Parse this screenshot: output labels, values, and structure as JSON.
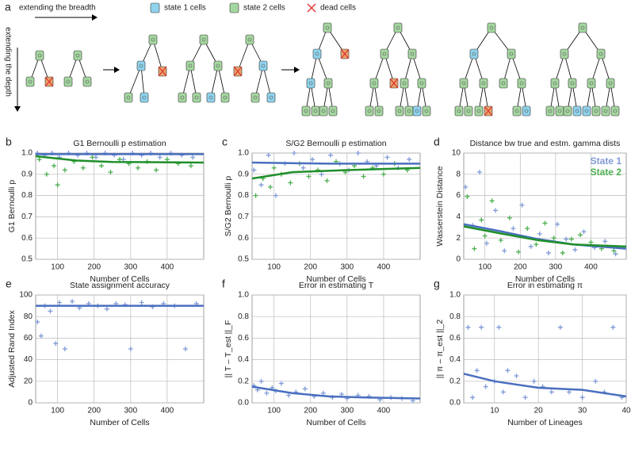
{
  "diagram": {
    "panel": "a",
    "breadth": "extending the breadth",
    "depth": "extending the depth",
    "legend": [
      "state 1 cells",
      "state 2 cells",
      "dead cells"
    ]
  },
  "chart_data": [
    {
      "type": "scatter",
      "panel": "b",
      "title": "G1 Bernoulli p estimation",
      "xlabel": "Number of Cells",
      "ylabel": "G1 Bernoulli p",
      "xlim": [
        40,
        500
      ],
      "ylim": [
        0.5,
        1.0
      ],
      "xticks": [
        100,
        200,
        300,
        400
      ],
      "yticks": [
        0.5,
        0.6,
        0.7,
        0.8,
        0.9,
        {
          "value": 1.0,
          "label": "1.0"
        }
      ],
      "grid": true,
      "series": [
        {
          "color": "#7f9ad6",
          "x": [
            45,
            65,
            85,
            105,
            130,
            155,
            180,
            205,
            230,
            255,
            280,
            305,
            330,
            355,
            380,
            410,
            440,
            470
          ],
          "values": [
            1.0,
            0.99,
            1.0,
            0.98,
            1.0,
            0.99,
            1.0,
            0.98,
            1.0,
            0.99,
            0.97,
            1.0,
            0.99,
            1.0,
            0.98,
            1.0,
            0.99,
            0.98
          ]
        },
        {
          "color": "#4caf50",
          "x": [
            50,
            70,
            90,
            100,
            120,
            145,
            170,
            195,
            220,
            245,
            270,
            295,
            320,
            345,
            370,
            400,
            430,
            465
          ],
          "values": [
            0.97,
            0.9,
            0.94,
            0.85,
            0.92,
            0.96,
            0.93,
            0.98,
            0.94,
            0.91,
            0.97,
            0.95,
            0.93,
            0.96,
            0.92,
            0.97,
            0.95,
            0.94
          ]
        }
      ],
      "trend_lines": [
        {
          "color": "#4a6fbf",
          "x": [
            40,
            500
          ],
          "values": [
            0.995,
            0.995
          ]
        },
        {
          "color": "#1f8f2a",
          "x": [
            40,
            150,
            250,
            350,
            500
          ],
          "values": [
            0.985,
            0.965,
            0.958,
            0.957,
            0.955
          ]
        }
      ]
    },
    {
      "type": "scatter",
      "panel": "c",
      "title": "S/G2 Bernoulli p estimation",
      "xlabel": "Number of Cells",
      "ylabel": "S/G2 Bernoulli p",
      "xlim": [
        40,
        500
      ],
      "ylim": [
        0.5,
        1.0
      ],
      "xticks": [
        100,
        200,
        300,
        400
      ],
      "yticks": [
        0.5,
        0.6,
        0.7,
        0.8,
        0.9,
        {
          "value": 1.0,
          "label": "1.0"
        }
      ],
      "grid": true,
      "series": [
        {
          "color": "#7f9ad6",
          "x": [
            45,
            65,
            85,
            105,
            130,
            155,
            180,
            205,
            230,
            255,
            280,
            305,
            330,
            355,
            380,
            410,
            440,
            470
          ],
          "values": [
            0.92,
            0.85,
            0.99,
            0.8,
            0.95,
            1.0,
            0.93,
            0.97,
            0.9,
            0.99,
            0.95,
            0.92,
            1.0,
            0.96,
            0.94,
            0.98,
            0.93,
            0.97
          ]
        },
        {
          "color": "#4caf50",
          "x": [
            50,
            70,
            90,
            100,
            120,
            145,
            170,
            195,
            220,
            245,
            270,
            295,
            320,
            345,
            370,
            400,
            430,
            465
          ],
          "values": [
            0.8,
            0.88,
            0.84,
            0.93,
            0.9,
            0.86,
            0.95,
            0.89,
            0.92,
            0.87,
            0.96,
            0.91,
            0.94,
            0.89,
            0.93,
            0.9,
            0.95,
            0.92
          ]
        }
      ],
      "trend_lines": [
        {
          "color": "#4a6fbf",
          "x": [
            40,
            250,
            500
          ],
          "values": [
            0.955,
            0.95,
            0.95
          ]
        },
        {
          "color": "#1f8f2a",
          "x": [
            40,
            150,
            300,
            500
          ],
          "values": [
            0.88,
            0.91,
            0.92,
            0.93
          ]
        }
      ]
    },
    {
      "type": "scatter",
      "panel": "d",
      "title": "Distance bw true and estm. gamma dists",
      "xlabel": "Number of Cells",
      "ylabel": "Wasserstein Distance",
      "xlim": [
        40,
        500
      ],
      "ylim": [
        0,
        10
      ],
      "xticks": [
        100,
        200,
        300,
        400
      ],
      "yticks": [
        0,
        2,
        4,
        6,
        8,
        10
      ],
      "grid": true,
      "legend": "upper right",
      "series": [
        {
          "name": "State 1",
          "color": "#7f9ad6",
          "x": [
            45,
            65,
            85,
            105,
            130,
            155,
            180,
            205,
            230,
            255,
            280,
            305,
            330,
            355,
            380,
            410,
            440,
            470
          ],
          "values": [
            6.8,
            3.2,
            8.2,
            1.5,
            4.6,
            0.8,
            2.9,
            5.1,
            1.2,
            2.4,
            0.6,
            3.3,
            1.9,
            0.9,
            2.6,
            1.1,
            1.7,
            0.5
          ]
        },
        {
          "name": "State 2",
          "color": "#4caf50",
          "x": [
            50,
            70,
            90,
            100,
            120,
            145,
            170,
            195,
            220,
            245,
            270,
            295,
            320,
            345,
            370,
            400,
            430,
            465
          ],
          "values": [
            5.9,
            1.0,
            3.7,
            2.2,
            5.5,
            1.8,
            3.9,
            0.7,
            2.9,
            1.4,
            3.4,
            2.0,
            0.6,
            1.9,
            2.3,
            1.6,
            1.0,
            0.8
          ]
        }
      ],
      "trend_lines": [
        {
          "color": "#4a6fbf",
          "x": [
            40,
            150,
            250,
            350,
            500
          ],
          "values": [
            3.3,
            2.6,
            1.9,
            1.4,
            1.0
          ]
        },
        {
          "color": "#1f8f2a",
          "x": [
            40,
            150,
            250,
            350,
            500
          ],
          "values": [
            3.1,
            2.4,
            1.8,
            1.4,
            1.2
          ]
        }
      ]
    },
    {
      "type": "scatter",
      "panel": "e",
      "title": "State assignment accuracy",
      "xlabel": "Number of Cells",
      "ylabel": "Adjusted Rand Index",
      "xlim": [
        40,
        500
      ],
      "ylim": [
        0,
        100
      ],
      "xticks": [
        100,
        200,
        300,
        400
      ],
      "yticks": [
        0,
        20,
        40,
        60,
        80,
        100
      ],
      "grid": true,
      "series": [
        {
          "color": "#7f9ad6",
          "x": [
            45,
            55,
            65,
            80,
            95,
            105,
            120,
            140,
            160,
            185,
            210,
            235,
            260,
            285,
            300,
            330,
            360,
            390,
            420,
            450,
            480
          ],
          "values": [
            75,
            62,
            90,
            85,
            55,
            93,
            50,
            94,
            88,
            92,
            90,
            87,
            92,
            91,
            50,
            93,
            89,
            92,
            90,
            50,
            92
          ]
        }
      ],
      "trend_lines": [
        {
          "color": "#4a6fbf",
          "x": [
            40,
            500
          ],
          "values": [
            90,
            90
          ]
        }
      ]
    },
    {
      "type": "scatter",
      "panel": "f",
      "title": "Error in estimating T",
      "xlabel": "Number of Cells",
      "ylabel": "|| T – T_est ||_F",
      "xlim": [
        40,
        500
      ],
      "ylim": [
        0,
        1
      ],
      "xticks": [
        100,
        200,
        300,
        400
      ],
      "yticks": [
        {
          "value": 0,
          "label": "0.0"
        },
        0.2,
        0.4,
        0.6,
        0.8,
        {
          "value": 1,
          "label": "1.0"
        }
      ],
      "grid": true,
      "series": [
        {
          "color": "#7f9ad6",
          "x": [
            45,
            55,
            65,
            80,
            95,
            105,
            120,
            140,
            160,
            185,
            210,
            235,
            260,
            285,
            300,
            330,
            360,
            390,
            420,
            450,
            480
          ],
          "values": [
            0.16,
            0.12,
            0.2,
            0.09,
            0.14,
            0.11,
            0.18,
            0.07,
            0.1,
            0.13,
            0.06,
            0.09,
            0.05,
            0.08,
            0.04,
            0.07,
            0.06,
            0.03,
            0.05,
            0.04,
            0.02
          ]
        }
      ],
      "trend_lines": [
        {
          "color": "#4a6fbf",
          "x": [
            40,
            150,
            250,
            350,
            500
          ],
          "values": [
            0.15,
            0.09,
            0.06,
            0.05,
            0.04
          ]
        }
      ]
    },
    {
      "type": "scatter",
      "panel": "g",
      "title": "Error in estimating π",
      "xlabel": "Number of Lineages",
      "ylabel": "|| π – π_est ||_2",
      "xlim": [
        3,
        40
      ],
      "ylim": [
        0,
        1
      ],
      "xticks": [
        10,
        20,
        30,
        40
      ],
      "yticks": [
        {
          "value": 0,
          "label": "0.0"
        },
        0.2,
        0.4,
        0.6,
        0.8,
        {
          "value": 1,
          "label": "1.0"
        }
      ],
      "grid": true,
      "series": [
        {
          "color": "#7f9ad6",
          "x": [
            4,
            5,
            6,
            7,
            8,
            10,
            11,
            12,
            13,
            15,
            17,
            19,
            21,
            23,
            25,
            27,
            30,
            33,
            35,
            37,
            39
          ],
          "values": [
            0.7,
            0.05,
            0.3,
            0.7,
            0.15,
            0.2,
            0.7,
            0.1,
            0.3,
            0.25,
            0.05,
            0.2,
            0.15,
            0.1,
            0.7,
            0.1,
            0.05,
            0.2,
            0.1,
            0.7,
            0.05
          ]
        }
      ],
      "trend_lines": [
        {
          "color": "#4a6fbf",
          "x": [
            3,
            10,
            20,
            30,
            40
          ],
          "values": [
            0.27,
            0.2,
            0.14,
            0.12,
            0.06
          ]
        }
      ]
    }
  ]
}
